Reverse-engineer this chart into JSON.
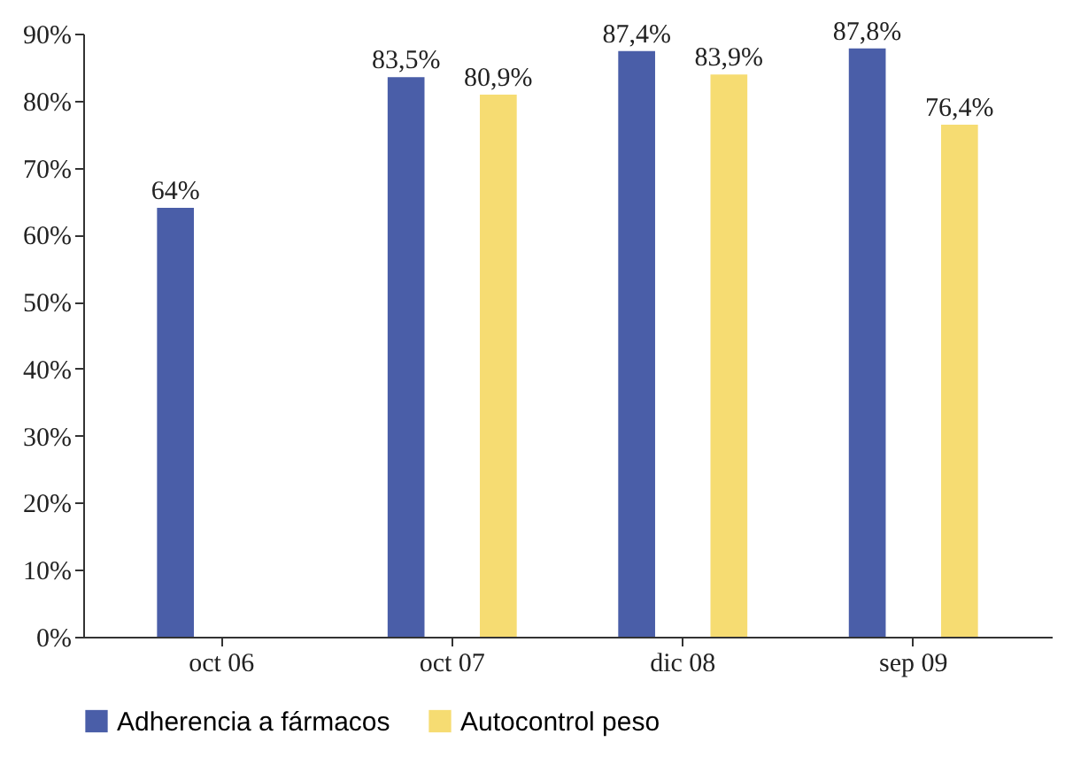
{
  "chart_data": {
    "type": "bar",
    "categories": [
      "oct 06",
      "oct 07",
      "dic 08",
      "sep 09"
    ],
    "series": [
      {
        "name": "Adherencia a fármacos",
        "color": "#4a5ea8",
        "values": [
          64,
          83.5,
          87.4,
          87.8
        ],
        "value_labels": [
          "64%",
          "83,5%",
          "87,4%",
          "87,8%"
        ]
      },
      {
        "name": "Autocontrol peso",
        "color": "#f6dc72",
        "values": [
          null,
          80.9,
          83.9,
          76.4
        ],
        "value_labels": [
          null,
          "80,9%",
          "83,9%",
          "76,4%"
        ]
      }
    ],
    "ylim": [
      0,
      90
    ],
    "yticks": [
      {
        "value": 0,
        "label": "0%"
      },
      {
        "value": 10,
        "label": "10%"
      },
      {
        "value": 20,
        "label": "20%"
      },
      {
        "value": 30,
        "label": "30%"
      },
      {
        "value": 40,
        "label": "40%"
      },
      {
        "value": 50,
        "label": "50%"
      },
      {
        "value": 60,
        "label": "60%"
      },
      {
        "value": 70,
        "label": "70%"
      },
      {
        "value": 80,
        "label": "80%"
      },
      {
        "value": 90,
        "label": "90%"
      }
    ],
    "grid": false,
    "legend": "bottom"
  }
}
